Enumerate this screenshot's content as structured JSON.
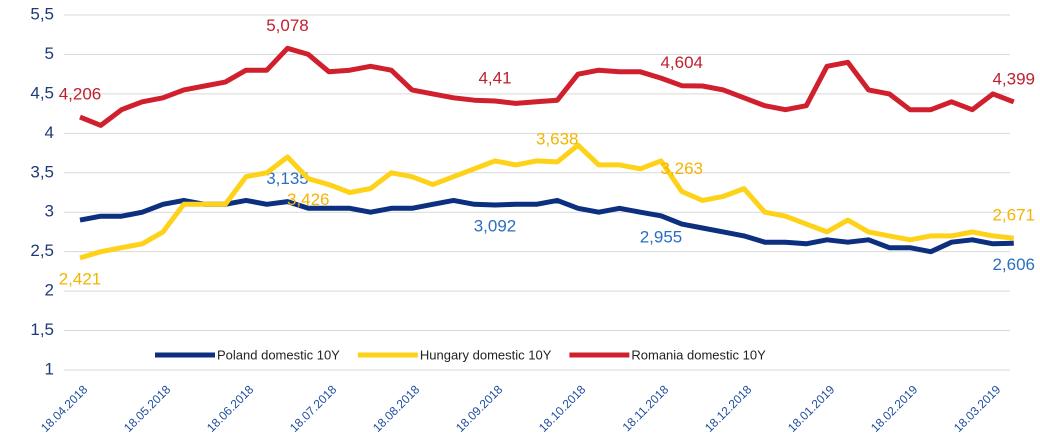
{
  "chart_data": {
    "type": "line",
    "categories": [
      "18.04.2018",
      null,
      null,
      null,
      "18.05.2018",
      null,
      null,
      null,
      "18.06.2018",
      null,
      null,
      null,
      "18.07.2018",
      null,
      null,
      null,
      "18.08.2018",
      null,
      null,
      null,
      "18.09.2018",
      null,
      null,
      null,
      "18.10.2018",
      null,
      null,
      null,
      "18.11.2018",
      null,
      null,
      null,
      "18.12.2018",
      null,
      null,
      null,
      "18.01.2019",
      null,
      null,
      null,
      "18.02.2019",
      null,
      null,
      null,
      "18.03.2019",
      null
    ],
    "series": [
      {
        "name": "Poland domestic 10Y",
        "color": "#0d2f7f",
        "values": [
          2.9,
          2.95,
          2.95,
          3.0,
          3.1,
          3.15,
          3.1,
          3.1,
          3.15,
          3.1,
          3.135,
          3.05,
          3.05,
          3.05,
          3.0,
          3.05,
          3.05,
          3.1,
          3.15,
          3.1,
          3.092,
          3.1,
          3.1,
          3.15,
          3.05,
          3.0,
          3.05,
          3.0,
          2.955,
          2.85,
          2.8,
          2.75,
          2.7,
          2.62,
          2.62,
          2.6,
          2.65,
          2.62,
          2.65,
          2.55,
          2.55,
          2.5,
          2.62,
          2.65,
          2.6,
          2.606
        ],
        "value_labels": [
          null,
          null,
          null,
          null,
          null,
          null,
          null,
          null,
          null,
          null,
          "3,135",
          null,
          null,
          null,
          null,
          null,
          null,
          null,
          null,
          null,
          "3,092",
          null,
          null,
          null,
          null,
          null,
          null,
          null,
          "2,955",
          null,
          null,
          null,
          null,
          null,
          null,
          null,
          null,
          null,
          null,
          null,
          null,
          null,
          null,
          null,
          null,
          "2,606"
        ],
        "label_color": "#2a6fc0"
      },
      {
        "name": "Hungary domestic 10Y",
        "color": "#ffd21a",
        "values": [
          2.421,
          2.5,
          2.55,
          2.6,
          2.75,
          3.1,
          3.1,
          3.1,
          3.45,
          3.5,
          3.7,
          3.426,
          3.35,
          3.25,
          3.3,
          3.5,
          3.45,
          3.35,
          3.45,
          3.55,
          3.65,
          3.6,
          3.65,
          3.638,
          3.85,
          3.6,
          3.6,
          3.55,
          3.65,
          3.263,
          3.15,
          3.2,
          3.3,
          3.0,
          2.95,
          2.85,
          2.75,
          2.9,
          2.75,
          2.7,
          2.65,
          2.7,
          2.7,
          2.75,
          2.7,
          2.671
        ],
        "value_labels": [
          "2,421",
          null,
          null,
          null,
          null,
          null,
          null,
          null,
          null,
          null,
          null,
          "3,426",
          null,
          null,
          null,
          null,
          null,
          null,
          null,
          null,
          null,
          null,
          null,
          "3,638",
          null,
          null,
          null,
          null,
          null,
          "3,263",
          null,
          null,
          null,
          null,
          null,
          null,
          null,
          null,
          null,
          null,
          null,
          null,
          null,
          null,
          null,
          "2,671"
        ],
        "label_color": "#f4b400"
      },
      {
        "name": "Romania domestic 10Y",
        "color": "#d0202e",
        "values": [
          4.206,
          4.1,
          4.3,
          4.4,
          4.45,
          4.55,
          4.6,
          4.65,
          4.8,
          4.8,
          5.078,
          5.0,
          4.78,
          4.8,
          4.85,
          4.8,
          4.55,
          4.5,
          4.45,
          4.42,
          4.41,
          4.38,
          4.4,
          4.42,
          4.75,
          4.8,
          4.78,
          4.78,
          4.7,
          4.604,
          4.6,
          4.55,
          4.45,
          4.35,
          4.3,
          4.35,
          4.85,
          4.9,
          4.55,
          4.5,
          4.3,
          4.3,
          4.4,
          4.3,
          4.5,
          4.399
        ],
        "value_labels": [
          "4,206",
          null,
          null,
          null,
          null,
          null,
          null,
          null,
          null,
          null,
          "5,078",
          null,
          null,
          null,
          null,
          null,
          null,
          null,
          null,
          null,
          "4,41",
          null,
          null,
          null,
          null,
          null,
          null,
          null,
          null,
          "4,604",
          null,
          null,
          null,
          null,
          null,
          null,
          null,
          null,
          null,
          null,
          null,
          null,
          null,
          null,
          null,
          "4,399"
        ],
        "label_color": "#c0202e"
      }
    ],
    "ylim": [
      1,
      5.5
    ],
    "yticks": [
      1,
      {
        "value": 1.5,
        "label": "1,5"
      },
      2,
      {
        "value": 2.5,
        "label": "2,5"
      },
      3,
      {
        "value": 3.5,
        "label": "3,5"
      },
      4,
      {
        "value": 4.5,
        "label": "4,5"
      },
      5,
      {
        "value": 5.5,
        "label": "5,5"
      }
    ],
    "grid": true,
    "legend": "bottom"
  }
}
